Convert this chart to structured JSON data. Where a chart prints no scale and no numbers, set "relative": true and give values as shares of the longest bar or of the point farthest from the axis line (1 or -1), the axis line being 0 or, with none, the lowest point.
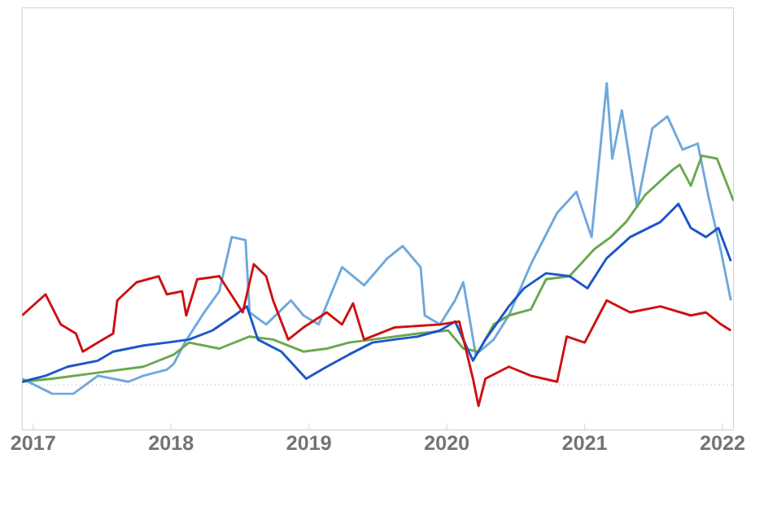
{
  "chart_data": {
    "type": "line",
    "relative": true,
    "xlim": [
      2016.92,
      2022.08
    ],
    "xticks": [
      2017,
      2018,
      2019,
      2020,
      2021,
      2022
    ],
    "grid": false,
    "marker": "none",
    "line_style": "solid",
    "ref_lines": [
      {
        "axis": "y",
        "value": 0,
        "color": "#aaaaaa",
        "line_style": "dotted"
      }
    ],
    "series": [
      {
        "color": "#6fa8dc",
        "x": [
          2016.92,
          2017.14,
          2017.29,
          2017.47,
          2017.69,
          2017.8,
          2017.97,
          2018.02,
          2018.1,
          2018.24,
          2018.35,
          2018.44,
          2018.54,
          2018.57,
          2018.69,
          2018.87,
          2018.96,
          2019.07,
          2019.24,
          2019.4,
          2019.57,
          2019.68,
          2019.81,
          2019.84,
          2019.95,
          2020.06,
          2020.12,
          2020.21,
          2020.34,
          2020.45,
          2020.61,
          2020.8,
          2020.94,
          2021.05,
          2021.16,
          2021.2,
          2021.27,
          2021.38,
          2021.49,
          2021.6,
          2021.71,
          2021.82,
          2021.9,
          2021.99,
          2022.06
        ],
        "values": [
          0.02,
          -0.03,
          -0.03,
          0.03,
          0.01,
          0.03,
          0.05,
          0.07,
          0.14,
          0.24,
          0.31,
          0.49,
          0.48,
          0.24,
          0.2,
          0.28,
          0.23,
          0.2,
          0.39,
          0.33,
          0.42,
          0.46,
          0.39,
          0.23,
          0.2,
          0.28,
          0.34,
          0.1,
          0.15,
          0.23,
          0.4,
          0.57,
          0.64,
          0.49,
          1.0,
          0.75,
          0.91,
          0.59,
          0.85,
          0.89,
          0.78,
          0.8,
          0.62,
          0.44,
          0.28
        ]
      },
      {
        "color": "#6aa84f",
        "x": [
          2016.92,
          2017.14,
          2017.47,
          2017.8,
          2018.02,
          2018.13,
          2018.35,
          2018.57,
          2018.74,
          2018.96,
          2019.13,
          2019.29,
          2019.46,
          2019.79,
          2020.01,
          2020.12,
          2020.23,
          2020.34,
          2020.45,
          2020.61,
          2020.72,
          2020.89,
          2021.07,
          2021.19,
          2021.3,
          2021.44,
          2021.63,
          2021.69,
          2021.77,
          2021.85,
          2021.96,
          2022.08
        ],
        "values": [
          0.01,
          0.02,
          0.04,
          0.06,
          0.1,
          0.14,
          0.12,
          0.16,
          0.15,
          0.11,
          0.12,
          0.14,
          0.15,
          0.17,
          0.18,
          0.12,
          0.11,
          0.2,
          0.23,
          0.25,
          0.35,
          0.36,
          0.45,
          0.49,
          0.54,
          0.63,
          0.71,
          0.73,
          0.66,
          0.76,
          0.75,
          0.61
        ]
      },
      {
        "color": "#1c56c8",
        "x": [
          2016.92,
          2017.09,
          2017.25,
          2017.47,
          2017.58,
          2017.8,
          2017.97,
          2018.13,
          2018.3,
          2018.46,
          2018.55,
          2018.63,
          2018.8,
          2018.98,
          2019.13,
          2019.29,
          2019.46,
          2019.62,
          2019.79,
          2019.95,
          2020.06,
          2020.19,
          2020.28,
          2020.45,
          2020.56,
          2020.72,
          2020.89,
          2021.02,
          2021.16,
          2021.33,
          2021.55,
          2021.68,
          2021.77,
          2021.88,
          2021.97,
          2022.06
        ],
        "values": [
          0.01,
          0.03,
          0.06,
          0.08,
          0.11,
          0.13,
          0.14,
          0.15,
          0.18,
          0.23,
          0.26,
          0.15,
          0.11,
          0.02,
          0.06,
          0.1,
          0.14,
          0.15,
          0.16,
          0.18,
          0.21,
          0.08,
          0.15,
          0.26,
          0.32,
          0.37,
          0.36,
          0.32,
          0.42,
          0.49,
          0.54,
          0.6,
          0.52,
          0.49,
          0.52,
          0.41
        ]
      },
      {
        "color": "#cc1111",
        "x": [
          2016.92,
          2017.09,
          2017.2,
          2017.31,
          2017.36,
          2017.47,
          2017.58,
          2017.61,
          2017.75,
          2017.91,
          2017.97,
          2018.08,
          2018.11,
          2018.19,
          2018.35,
          2018.52,
          2018.6,
          2018.69,
          2018.74,
          2018.85,
          2018.96,
          2019.13,
          2019.24,
          2019.32,
          2019.4,
          2019.62,
          2019.95,
          2020.09,
          2020.19,
          2020.23,
          2020.28,
          2020.45,
          2020.61,
          2020.8,
          2020.87,
          2021.0,
          2021.16,
          2021.33,
          2021.55,
          2021.77,
          2021.88,
          2021.99,
          2022.06
        ],
        "values": [
          0.23,
          0.3,
          0.2,
          0.17,
          0.11,
          0.14,
          0.17,
          0.28,
          0.34,
          0.36,
          0.3,
          0.31,
          0.23,
          0.35,
          0.36,
          0.24,
          0.4,
          0.36,
          0.28,
          0.15,
          0.19,
          0.24,
          0.2,
          0.27,
          0.15,
          0.19,
          0.2,
          0.21,
          0.02,
          -0.07,
          0.02,
          0.06,
          0.03,
          0.01,
          0.16,
          0.14,
          0.28,
          0.24,
          0.26,
          0.23,
          0.24,
          0.2,
          0.18
        ]
      }
    ]
  }
}
